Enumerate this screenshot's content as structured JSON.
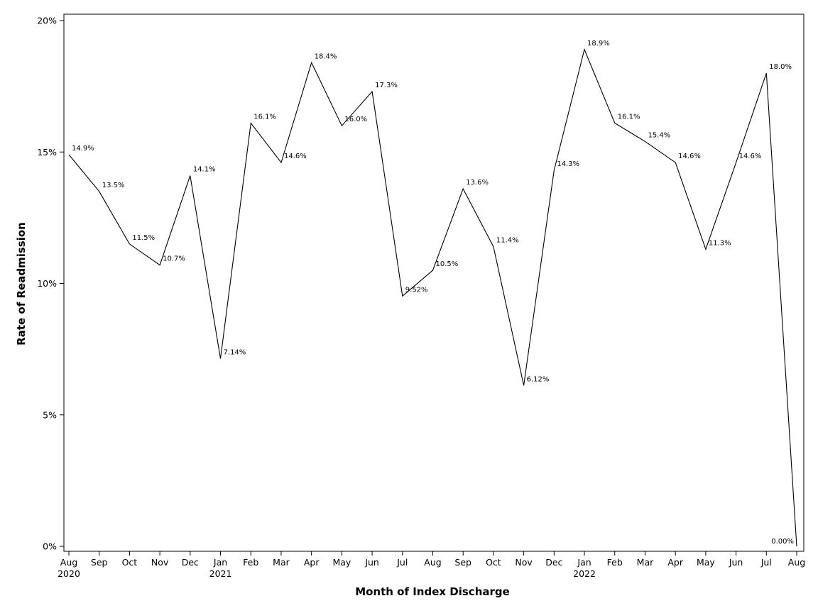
{
  "chart_data": {
    "type": "line",
    "title": "",
    "xlabel": "Month of Index Discharge",
    "ylabel": "Rate of Readmission",
    "ylim": [
      0,
      20
    ],
    "yticks": [
      "0%",
      "5%",
      "10%",
      "15%",
      "20%"
    ],
    "grid": false,
    "legend": "none",
    "x": [
      {
        "month": "Aug",
        "year": "2020"
      },
      {
        "month": "Sep",
        "year": ""
      },
      {
        "month": "Oct",
        "year": ""
      },
      {
        "month": "Nov",
        "year": ""
      },
      {
        "month": "Dec",
        "year": ""
      },
      {
        "month": "Jan",
        "year": "2021"
      },
      {
        "month": "Feb",
        "year": ""
      },
      {
        "month": "Mar",
        "year": ""
      },
      {
        "month": "Apr",
        "year": ""
      },
      {
        "month": "May",
        "year": ""
      },
      {
        "month": "Jun",
        "year": ""
      },
      {
        "month": "Jul",
        "year": ""
      },
      {
        "month": "Aug",
        "year": ""
      },
      {
        "month": "Sep",
        "year": ""
      },
      {
        "month": "Oct",
        "year": ""
      },
      {
        "month": "Nov",
        "year": ""
      },
      {
        "month": "Dec",
        "year": ""
      },
      {
        "month": "Jan",
        "year": "2022"
      },
      {
        "month": "Feb",
        "year": ""
      },
      {
        "month": "Mar",
        "year": ""
      },
      {
        "month": "Apr",
        "year": ""
      },
      {
        "month": "May",
        "year": ""
      },
      {
        "month": "Jun",
        "year": ""
      },
      {
        "month": "Jul",
        "year": ""
      },
      {
        "month": "Aug",
        "year": ""
      }
    ],
    "values": [
      14.9,
      13.5,
      11.5,
      10.7,
      14.1,
      7.14,
      16.1,
      14.6,
      18.4,
      16.0,
      17.3,
      9.52,
      10.5,
      13.6,
      11.4,
      6.12,
      14.3,
      18.9,
      16.1,
      15.4,
      14.6,
      11.3,
      14.6,
      18.0,
      0.0
    ],
    "labels": [
      "14.9%",
      "13.5%",
      "11.5%",
      "10.7%",
      "14.1%",
      "7.14%",
      "16.1%",
      "14.6%",
      "18.4%",
      "16.0%",
      "17.3%",
      "9.52%",
      "10.5%",
      "13.6%",
      "11.4%",
      "6.12%",
      "14.3%",
      "18.9%",
      "16.1%",
      "15.4%",
      "14.6%",
      "11.3%",
      "14.6%",
      "18.0%",
      "0.00%"
    ],
    "line_color": "#000000"
  }
}
